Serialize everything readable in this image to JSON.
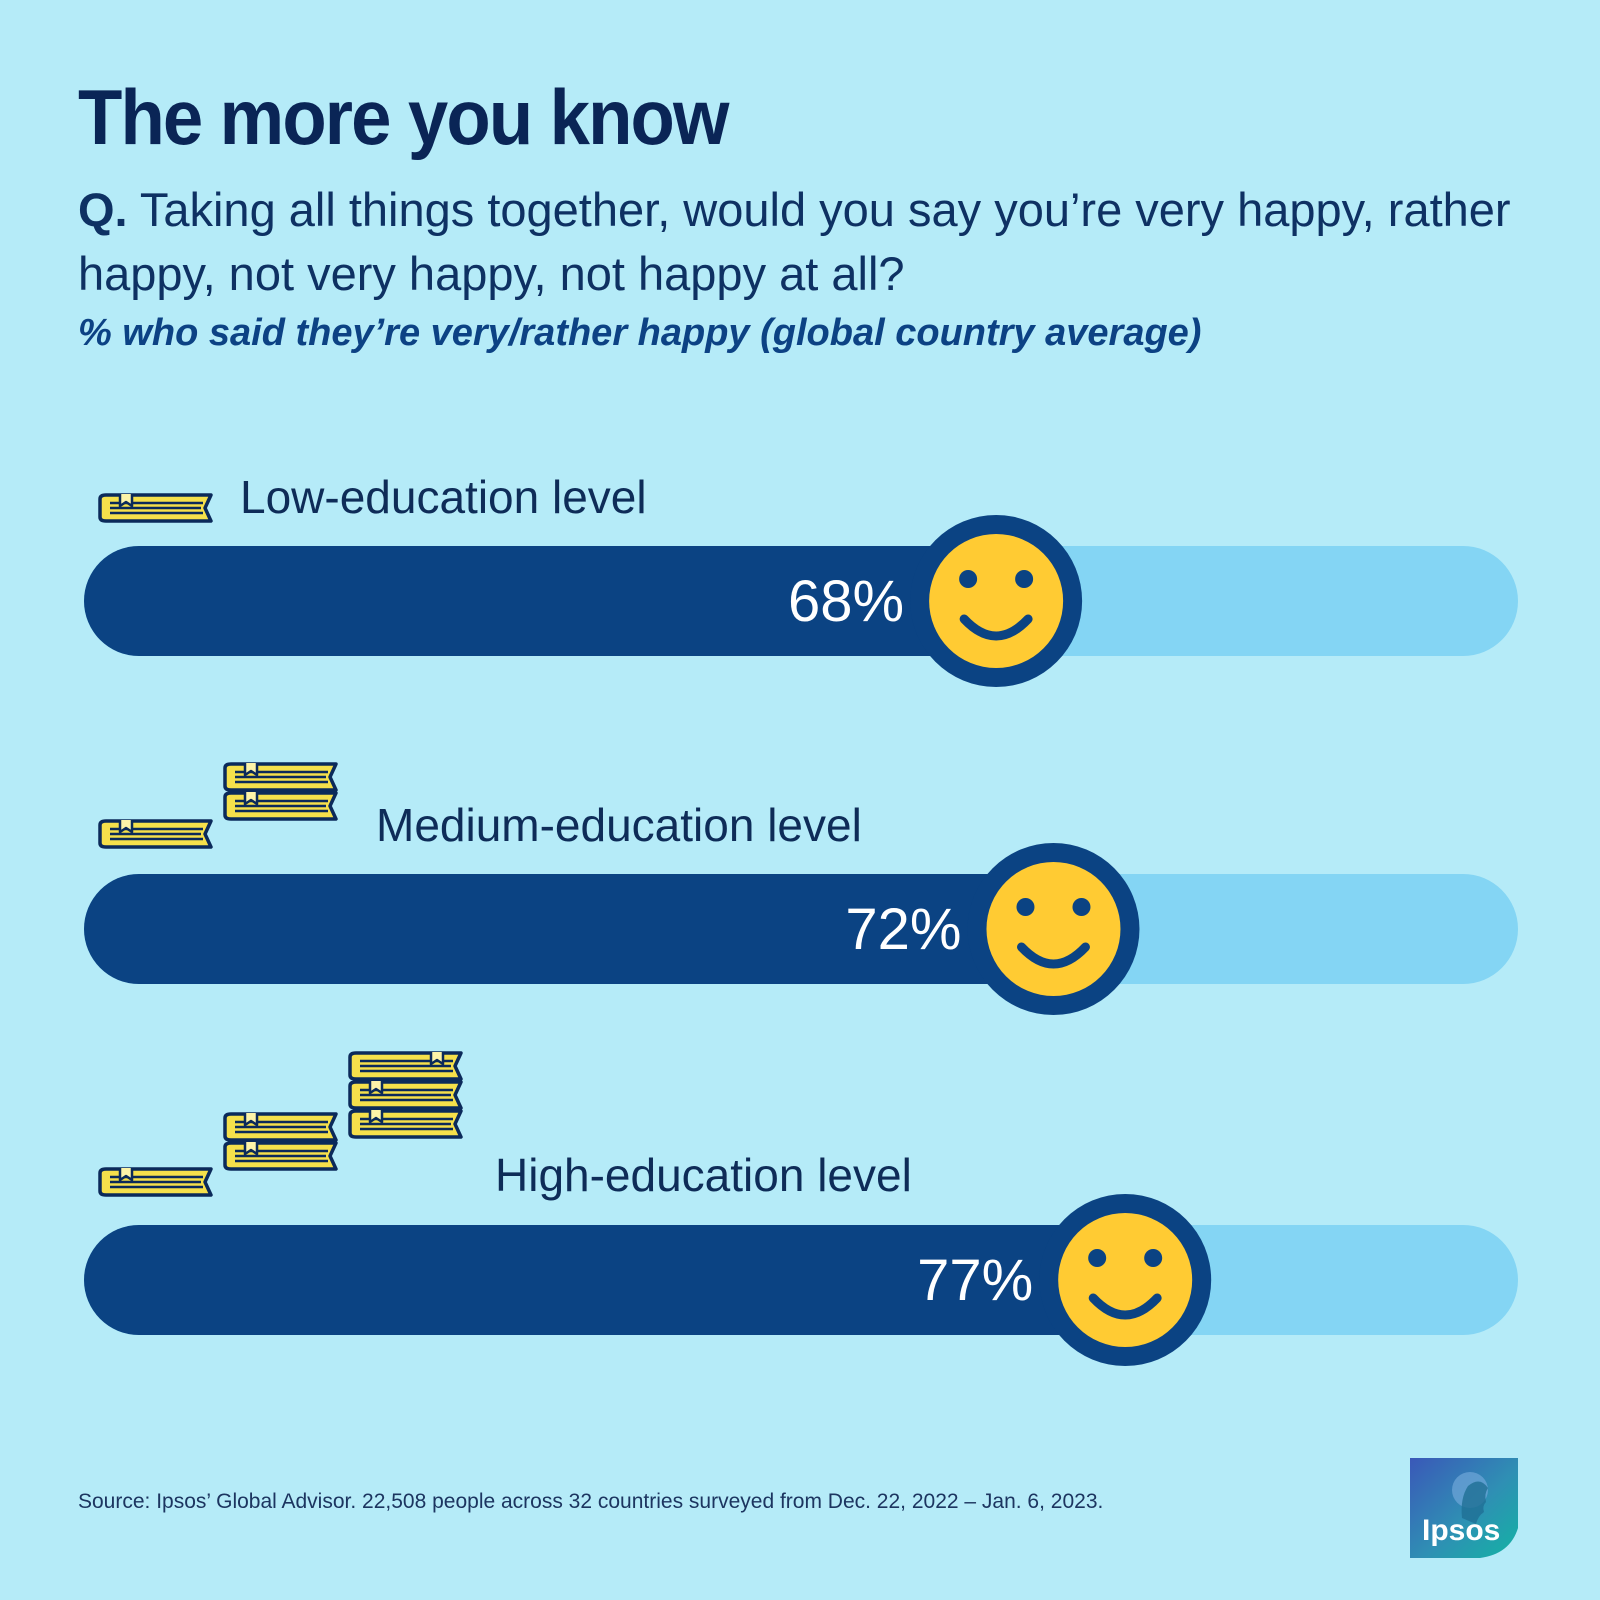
{
  "header": {
    "title": "The more you know",
    "question_prefix": "Q.",
    "question": "Taking all things together, would you say you’re very happy, rather happy, not very happy, not happy at all?",
    "subtitle": "% who said they’re very/rather happy (global country average)"
  },
  "colors": {
    "background": "#b5ebf8",
    "bar_fill": "#0b4383",
    "bar_track": "#84d5f4",
    "smiley": "#ffcb33",
    "book_yellow": "#f5e04b",
    "book_light": "#fdf4a8",
    "outline": "#0b2a5a"
  },
  "chart_data": {
    "type": "bar",
    "orientation": "horizontal",
    "categories": [
      "Low-education level",
      "Medium-education level",
      "High-education level"
    ],
    "values": [
      68,
      72,
      77
    ],
    "value_labels": [
      "68%",
      "72%",
      "77%"
    ],
    "unit": "%",
    "xlim": [
      0,
      100
    ],
    "icons": [
      "books-stack-1-icon",
      "books-stack-2-icon",
      "books-stack-3-icon",
      "smiley-icon"
    ]
  },
  "footer": {
    "source": "Source: Ipsos’ Global Advisor. 22,508 people across 32 countries surveyed from Dec. 22, 2022 – Jan. 6, 2023."
  },
  "logo": {
    "text": "Ipsos"
  }
}
